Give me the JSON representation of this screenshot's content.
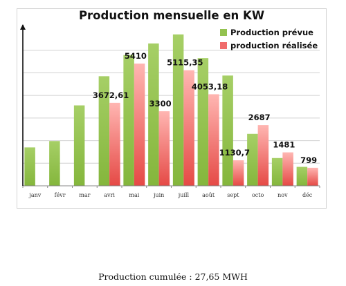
{
  "chart_data": {
    "type": "bar",
    "title": "Production mensuelle en KW",
    "categories": [
      "janv",
      "févr",
      "mar",
      "avri",
      "mai",
      "juin",
      "juill",
      "août",
      "sept",
      "octo",
      "nov",
      "déc"
    ],
    "series": [
      {
        "name": "Production prévue",
        "color": "#93c24f",
        "values": [
          1700,
          1980,
          3560,
          4850,
          5790,
          6300,
          6700,
          5650,
          4880,
          2300,
          1230,
          840
        ]
      },
      {
        "name": "production réalisée",
        "color": "#f06c6c",
        "values": [
          null,
          null,
          null,
          3672.61,
          5410,
          3300,
          5115.35,
          4053.18,
          1130.7,
          2687,
          1481,
          799
        ]
      }
    ],
    "data_labels": [
      null,
      null,
      null,
      "3672,61",
      "5410",
      "3300",
      "5115,35",
      "4053,18",
      "1130,7",
      "2687",
      "1481",
      "799"
    ],
    "ylim": [
      0,
      7000
    ],
    "grid": true,
    "legend_position": "top-right"
  },
  "footnote": "Production cumulée : 27,65 MWH"
}
